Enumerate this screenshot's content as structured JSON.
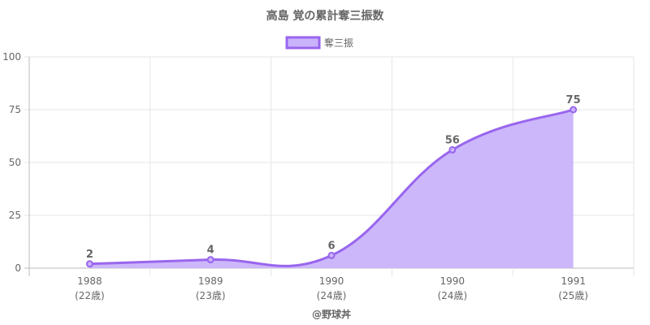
{
  "chart_data": {
    "type": "area",
    "title": "高島 覚の累計奪三振数",
    "categories": [
      {
        "year": "1988",
        "age": "(22歳)"
      },
      {
        "year": "1989",
        "age": "(23歳)"
      },
      {
        "year": "1990",
        "age": "(24歳)"
      },
      {
        "year": "1990",
        "age": "(24歳)"
      },
      {
        "year": "1991",
        "age": "(25歳)"
      }
    ],
    "series": [
      {
        "name": "奪三振",
        "values": [
          2,
          4,
          6,
          56,
          75
        ]
      }
    ],
    "ylim": [
      0,
      100
    ],
    "yticks": [
      0,
      25,
      50,
      75,
      100
    ],
    "grid": true,
    "legend_position": "top",
    "colors": {
      "line": "#9966ee",
      "fill": "#c9b3fb",
      "grid": "#e6e6e6",
      "axis": "#bbbbbb"
    }
  },
  "footer": {
    "credit": "@野球丼"
  }
}
